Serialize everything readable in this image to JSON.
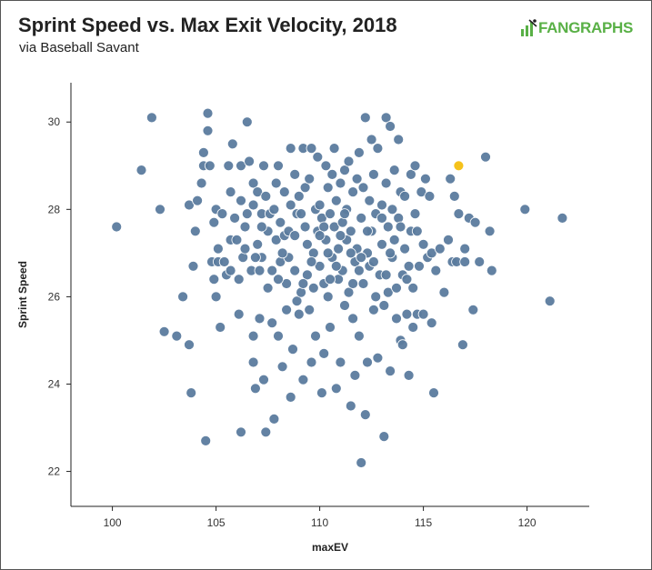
{
  "header": {
    "title": "Sprint Speed vs. Max Exit Velocity, 2018",
    "subtitle": "via Baseball Savant",
    "logo_text": "FANGRAPHS"
  },
  "colors": {
    "point": "#5b7b9e",
    "point_stroke": "#ffffff",
    "highlight": "#f5c21b",
    "axis": "#222222",
    "logo": "#59b046"
  },
  "chart_data": {
    "type": "scatter",
    "title": "Sprint Speed vs. Max Exit Velocity, 2018",
    "subtitle": "via Baseball Savant",
    "xlabel": "maxEV",
    "ylabel": "Sprint Speed",
    "xlim": [
      98,
      123
    ],
    "ylim": [
      21.2,
      30.9
    ],
    "xticks": [
      100,
      105,
      110,
      115,
      120
    ],
    "yticks": [
      22,
      24,
      26,
      28,
      30
    ],
    "grid": false,
    "legend": "none",
    "highlight": {
      "x": 116.7,
      "y": 29.0
    },
    "points": [
      [
        100.2,
        27.6
      ],
      [
        101.4,
        28.9
      ],
      [
        101.9,
        30.1
      ],
      [
        102.3,
        28.0
      ],
      [
        102.5,
        25.2
      ],
      [
        103.1,
        25.1
      ],
      [
        103.4,
        26.0
      ],
      [
        103.7,
        24.9
      ],
      [
        103.7,
        28.1
      ],
      [
        103.8,
        23.8
      ],
      [
        103.9,
        26.7
      ],
      [
        104.0,
        27.5
      ],
      [
        104.1,
        28.2
      ],
      [
        104.3,
        28.6
      ],
      [
        104.4,
        29.0
      ],
      [
        104.4,
        29.3
      ],
      [
        104.5,
        22.7
      ],
      [
        104.6,
        30.2
      ],
      [
        104.6,
        29.8
      ],
      [
        104.7,
        29.0
      ],
      [
        104.8,
        26.8
      ],
      [
        104.9,
        27.7
      ],
      [
        104.9,
        26.4
      ],
      [
        105.0,
        26.0
      ],
      [
        105.0,
        28.0
      ],
      [
        105.1,
        27.1
      ],
      [
        105.1,
        26.8
      ],
      [
        105.2,
        25.3
      ],
      [
        105.3,
        27.9
      ],
      [
        105.4,
        26.8
      ],
      [
        105.5,
        26.5
      ],
      [
        105.6,
        29.0
      ],
      [
        105.7,
        27.3
      ],
      [
        105.7,
        28.4
      ],
      [
        105.7,
        26.6
      ],
      [
        105.8,
        29.5
      ],
      [
        105.9,
        27.8
      ],
      [
        106.0,
        27.3
      ],
      [
        106.1,
        26.4
      ],
      [
        106.1,
        25.6
      ],
      [
        106.2,
        29.0
      ],
      [
        106.2,
        28.2
      ],
      [
        106.2,
        22.9
      ],
      [
        106.3,
        26.9
      ],
      [
        106.4,
        27.1
      ],
      [
        106.4,
        27.6
      ],
      [
        106.5,
        30.0
      ],
      [
        106.6,
        29.1
      ],
      [
        106.7,
        26.6
      ],
      [
        106.8,
        28.6
      ],
      [
        106.8,
        28.1
      ],
      [
        106.8,
        25.1
      ],
      [
        106.8,
        24.5
      ],
      [
        106.9,
        23.9
      ],
      [
        107.0,
        28.4
      ],
      [
        107.1,
        26.6
      ],
      [
        107.1,
        25.5
      ],
      [
        107.2,
        27.9
      ],
      [
        107.2,
        26.9
      ],
      [
        107.3,
        29.0
      ],
      [
        107.3,
        24.1
      ],
      [
        107.4,
        22.9
      ],
      [
        107.4,
        28.3
      ],
      [
        107.5,
        27.5
      ],
      [
        107.6,
        27.9
      ],
      [
        107.7,
        25.4
      ],
      [
        107.7,
        26.6
      ],
      [
        107.8,
        28.0
      ],
      [
        107.8,
        23.2
      ],
      [
        107.9,
        27.3
      ],
      [
        107.9,
        28.6
      ],
      [
        108.0,
        25.1
      ],
      [
        108.0,
        29.0
      ],
      [
        108.1,
        26.8
      ],
      [
        108.1,
        27.7
      ],
      [
        108.2,
        24.4
      ],
      [
        108.3,
        27.4
      ],
      [
        108.3,
        28.4
      ],
      [
        108.4,
        25.7
      ],
      [
        108.4,
        26.3
      ],
      [
        108.5,
        26.9
      ],
      [
        108.5,
        27.5
      ],
      [
        108.6,
        29.4
      ],
      [
        108.6,
        28.1
      ],
      [
        108.6,
        23.7
      ],
      [
        108.7,
        24.8
      ],
      [
        108.8,
        28.8
      ],
      [
        108.8,
        26.6
      ],
      [
        108.9,
        25.9
      ],
      [
        108.9,
        27.9
      ],
      [
        109.0,
        28.3
      ],
      [
        109.0,
        25.6
      ],
      [
        109.1,
        26.1
      ],
      [
        109.2,
        29.4
      ],
      [
        109.2,
        24.1
      ],
      [
        109.3,
        27.6
      ],
      [
        109.3,
        28.5
      ],
      [
        109.4,
        26.5
      ],
      [
        109.4,
        27.2
      ],
      [
        109.5,
        25.7
      ],
      [
        109.5,
        28.7
      ],
      [
        109.6,
        29.4
      ],
      [
        109.6,
        24.5
      ],
      [
        109.7,
        27.0
      ],
      [
        109.7,
        26.2
      ],
      [
        109.8,
        28.0
      ],
      [
        109.8,
        25.1
      ],
      [
        109.9,
        27.5
      ],
      [
        109.9,
        29.2
      ],
      [
        110.0,
        26.7
      ],
      [
        110.0,
        28.1
      ],
      [
        110.1,
        23.8
      ],
      [
        110.1,
        27.8
      ],
      [
        110.2,
        26.3
      ],
      [
        110.2,
        24.7
      ],
      [
        110.3,
        29.0
      ],
      [
        110.3,
        27.3
      ],
      [
        110.4,
        28.5
      ],
      [
        110.4,
        26.0
      ],
      [
        110.5,
        27.9
      ],
      [
        110.5,
        25.3
      ],
      [
        110.6,
        28.8
      ],
      [
        110.6,
        26.9
      ],
      [
        110.7,
        27.6
      ],
      [
        110.7,
        29.4
      ],
      [
        110.8,
        23.9
      ],
      [
        110.8,
        28.2
      ],
      [
        110.9,
        26.4
      ],
      [
        110.9,
        27.1
      ],
      [
        111.0,
        28.6
      ],
      [
        111.0,
        24.5
      ],
      [
        111.1,
        27.7
      ],
      [
        111.1,
        26.6
      ],
      [
        111.2,
        28.9
      ],
      [
        111.2,
        25.8
      ],
      [
        111.3,
        27.3
      ],
      [
        111.3,
        28.0
      ],
      [
        111.4,
        26.1
      ],
      [
        111.4,
        29.1
      ],
      [
        111.5,
        23.5
      ],
      [
        111.5,
        27.5
      ],
      [
        111.6,
        28.4
      ],
      [
        111.6,
        25.5
      ],
      [
        111.7,
        26.8
      ],
      [
        111.7,
        24.2
      ],
      [
        111.8,
        28.7
      ],
      [
        111.8,
        27.1
      ],
      [
        111.9,
        29.3
      ],
      [
        111.9,
        25.1
      ],
      [
        112.0,
        22.2
      ],
      [
        112.0,
        27.8
      ],
      [
        112.1,
        26.3
      ],
      [
        112.1,
        28.5
      ],
      [
        112.2,
        30.1
      ],
      [
        112.2,
        23.3
      ],
      [
        112.3,
        27.0
      ],
      [
        112.3,
        24.5
      ],
      [
        112.4,
        28.2
      ],
      [
        112.4,
        26.7
      ],
      [
        112.5,
        29.6
      ],
      [
        112.5,
        27.5
      ],
      [
        112.6,
        25.7
      ],
      [
        112.6,
        28.8
      ],
      [
        112.7,
        26.0
      ],
      [
        112.7,
        27.9
      ],
      [
        112.8,
        24.6
      ],
      [
        112.8,
        29.4
      ],
      [
        112.9,
        26.5
      ],
      [
        113.0,
        28.1
      ],
      [
        113.0,
        27.2
      ],
      [
        113.1,
        25.8
      ],
      [
        113.1,
        22.8
      ],
      [
        113.2,
        28.6
      ],
      [
        113.2,
        30.1
      ],
      [
        113.3,
        27.6
      ],
      [
        113.3,
        26.1
      ],
      [
        113.4,
        29.9
      ],
      [
        113.4,
        24.3
      ],
      [
        113.5,
        28.0
      ],
      [
        113.5,
        26.9
      ],
      [
        113.6,
        27.3
      ],
      [
        113.6,
        28.9
      ],
      [
        113.7,
        25.5
      ],
      [
        113.7,
        26.2
      ],
      [
        113.8,
        29.6
      ],
      [
        113.8,
        27.8
      ],
      [
        113.9,
        25.0
      ],
      [
        113.9,
        28.4
      ],
      [
        114.0,
        26.5
      ],
      [
        114.0,
        24.9
      ],
      [
        114.1,
        27.1
      ],
      [
        114.1,
        28.3
      ],
      [
        114.2,
        25.6
      ],
      [
        114.3,
        26.7
      ],
      [
        114.3,
        24.2
      ],
      [
        114.4,
        28.8
      ],
      [
        114.4,
        27.5
      ],
      [
        114.5,
        25.3
      ],
      [
        114.5,
        26.2
      ],
      [
        114.6,
        29.0
      ],
      [
        114.6,
        27.9
      ],
      [
        114.7,
        25.6
      ],
      [
        114.8,
        26.7
      ],
      [
        114.9,
        28.4
      ],
      [
        115.0,
        27.2
      ],
      [
        115.0,
        25.6
      ],
      [
        115.1,
        28.7
      ],
      [
        115.2,
        26.9
      ],
      [
        115.3,
        28.3
      ],
      [
        115.4,
        27.0
      ],
      [
        115.4,
        25.4
      ],
      [
        115.5,
        23.8
      ],
      [
        115.6,
        26.6
      ],
      [
        115.8,
        27.1
      ],
      [
        116.0,
        26.1
      ],
      [
        116.2,
        27.3
      ],
      [
        116.3,
        28.7
      ],
      [
        116.4,
        26.8
      ],
      [
        116.5,
        28.3
      ],
      [
        116.6,
        26.8
      ],
      [
        116.7,
        27.9
      ],
      [
        116.9,
        24.9
      ],
      [
        117.0,
        26.8
      ],
      [
        117.0,
        27.1
      ],
      [
        117.2,
        27.8
      ],
      [
        117.4,
        25.7
      ],
      [
        117.5,
        27.7
      ],
      [
        117.7,
        26.8
      ],
      [
        118.0,
        29.2
      ],
      [
        118.2,
        27.5
      ],
      [
        118.3,
        26.6
      ],
      [
        119.9,
        28.0
      ],
      [
        121.1,
        25.9
      ],
      [
        121.7,
        27.8
      ],
      [
        106.5,
        27.9
      ],
      [
        107.0,
        27.2
      ],
      [
        107.5,
        26.2
      ],
      [
        108.2,
        27.0
      ],
      [
        108.8,
        27.4
      ],
      [
        109.1,
        27.9
      ],
      [
        109.6,
        26.8
      ],
      [
        110.2,
        27.6
      ],
      [
        110.4,
        27.0
      ],
      [
        110.8,
        26.7
      ],
      [
        111.2,
        27.9
      ],
      [
        111.5,
        27.0
      ],
      [
        111.9,
        26.6
      ],
      [
        112.3,
        27.5
      ],
      [
        112.6,
        26.8
      ],
      [
        113.0,
        27.8
      ],
      [
        113.4,
        27.0
      ],
      [
        113.9,
        27.6
      ],
      [
        114.2,
        26.4
      ],
      [
        114.7,
        27.5
      ],
      [
        109.2,
        26.3
      ],
      [
        110.0,
        27.4
      ],
      [
        111.0,
        27.4
      ],
      [
        112.0,
        26.9
      ],
      [
        113.2,
        26.5
      ],
      [
        108.0,
        26.4
      ],
      [
        107.2,
        27.6
      ],
      [
        106.9,
        26.9
      ],
      [
        110.5,
        26.4
      ],
      [
        111.6,
        26.3
      ]
    ]
  }
}
